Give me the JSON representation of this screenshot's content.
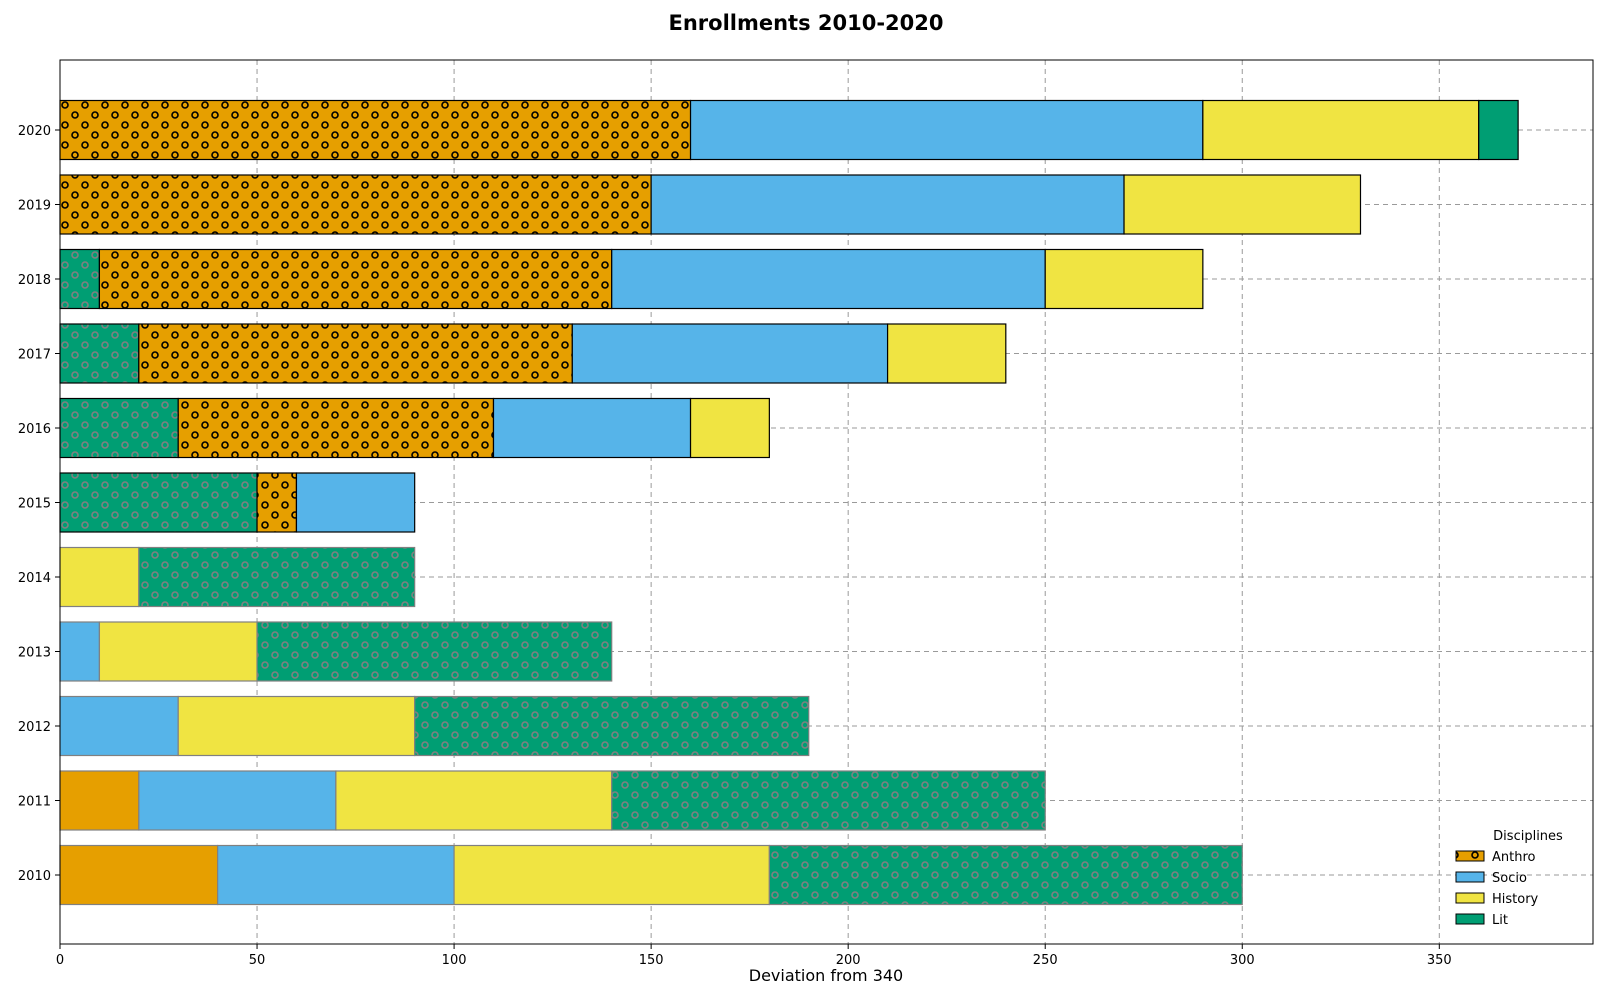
{
  "chart_data": {
    "type": "bar",
    "orientation": "horizontal",
    "stacked": true,
    "title": "Enrollments 2010-2020",
    "xlabel": "Deviation from 340",
    "ylabel": "",
    "xlim": [
      0,
      389
    ],
    "xticks": [
      0,
      50,
      100,
      150,
      200,
      250,
      300,
      350
    ],
    "categories": [
      "2010",
      "2011",
      "2012",
      "2013",
      "2014",
      "2015",
      "2016",
      "2017",
      "2018",
      "2019",
      "2020"
    ],
    "grid": true,
    "legend": {
      "title": "Disciplines",
      "placement": "lower-right",
      "entries": [
        "Anthro",
        "Socio",
        "History",
        "Lit"
      ]
    },
    "colors": {
      "Anthro": "#E69F00",
      "Socio": "#56B4E9",
      "History": "#F0E442",
      "Lit": "#009E73"
    },
    "rows": [
      {
        "year": "2010",
        "segments": [
          {
            "series": "Anthro",
            "start": 0,
            "end": 40
          },
          {
            "series": "Socio",
            "start": 40,
            "end": 100
          },
          {
            "series": "History",
            "start": 100,
            "end": 180
          },
          {
            "series": "Lit",
            "start": 180,
            "end": 300
          }
        ]
      },
      {
        "year": "2011",
        "segments": [
          {
            "series": "Anthro",
            "start": 0,
            "end": 20
          },
          {
            "series": "Socio",
            "start": 20,
            "end": 70
          },
          {
            "series": "History",
            "start": 70,
            "end": 140
          },
          {
            "series": "Lit",
            "start": 140,
            "end": 250
          }
        ]
      },
      {
        "year": "2012",
        "segments": [
          {
            "series": "Socio",
            "start": 0,
            "end": 30
          },
          {
            "series": "History",
            "start": 30,
            "end": 90
          },
          {
            "series": "Lit",
            "start": 90,
            "end": 190
          }
        ]
      },
      {
        "year": "2013",
        "segments": [
          {
            "series": "Socio",
            "start": 0,
            "end": 10
          },
          {
            "series": "History",
            "start": 10,
            "end": 50
          },
          {
            "series": "Lit",
            "start": 50,
            "end": 140
          }
        ]
      },
      {
        "year": "2014",
        "segments": [
          {
            "series": "History",
            "start": 0,
            "end": 20
          },
          {
            "series": "Lit",
            "start": 20,
            "end": 90
          }
        ]
      },
      {
        "year": "2015",
        "segments": [
          {
            "series": "Lit",
            "start": 0,
            "end": 50
          },
          {
            "series": "Anthro",
            "start": 50,
            "end": 60
          },
          {
            "series": "Socio",
            "start": 60,
            "end": 90
          }
        ]
      },
      {
        "year": "2016",
        "segments": [
          {
            "series": "Lit",
            "start": 0,
            "end": 30
          },
          {
            "series": "Anthro",
            "start": 30,
            "end": 110
          },
          {
            "series": "Socio",
            "start": 110,
            "end": 160
          },
          {
            "series": "History",
            "start": 160,
            "end": 180
          }
        ]
      },
      {
        "year": "2017",
        "segments": [
          {
            "series": "Lit",
            "start": 0,
            "end": 20
          },
          {
            "series": "Anthro",
            "start": 20,
            "end": 130
          },
          {
            "series": "Socio",
            "start": 130,
            "end": 210
          },
          {
            "series": "History",
            "start": 210,
            "end": 240
          }
        ]
      },
      {
        "year": "2018",
        "segments": [
          {
            "series": "Lit",
            "start": 0,
            "end": 10
          },
          {
            "series": "Anthro",
            "start": 10,
            "end": 140
          },
          {
            "series": "Socio",
            "start": 140,
            "end": 250
          },
          {
            "series": "History",
            "start": 250,
            "end": 290
          }
        ]
      },
      {
        "year": "2019",
        "segments": [
          {
            "series": "Anthro",
            "start": 0,
            "end": 150
          },
          {
            "series": "Socio",
            "start": 150,
            "end": 270
          },
          {
            "series": "History",
            "start": 270,
            "end": 330
          }
        ]
      },
      {
        "year": "2020",
        "segments": [
          {
            "series": "Anthro",
            "start": 0,
            "end": 160
          },
          {
            "series": "Socio",
            "start": 160,
            "end": 290
          },
          {
            "series": "History",
            "start": 290,
            "end": 360
          },
          {
            "series": "Lit",
            "start": 360,
            "end": 370
          }
        ]
      }
    ]
  }
}
